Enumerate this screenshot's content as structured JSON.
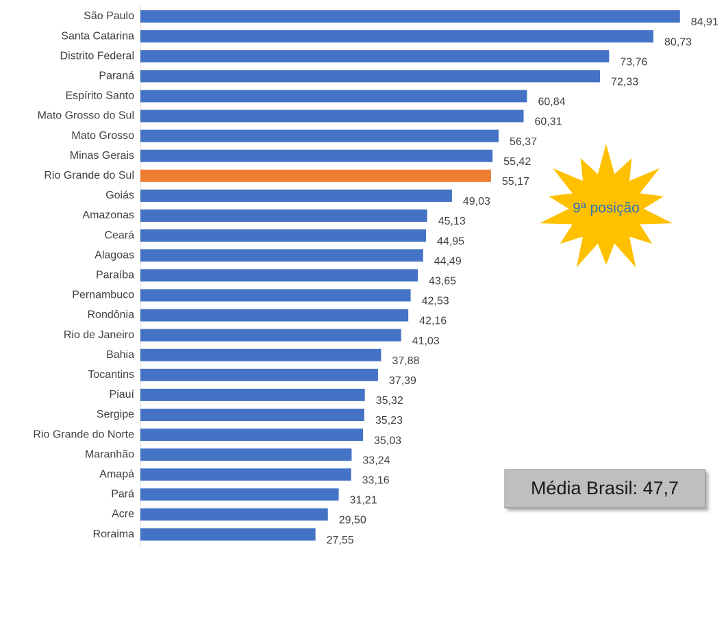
{
  "chart_data": {
    "type": "bar",
    "orientation": "horizontal",
    "categories": [
      "São Paulo",
      "Santa Catarina",
      "Distrito Federal",
      "Paraná",
      "Espírito Santo",
      "Mato Grosso do Sul",
      "Mato Grosso",
      "Minas Gerais",
      "Rio Grande do Sul",
      "Goiás",
      "Amazonas",
      "Ceará",
      "Alagoas",
      "Paraíba",
      "Pernambuco",
      "Rondônia",
      "Rio de Janeiro",
      "Bahia",
      "Tocantins",
      "Piauí",
      "Sergipe",
      "Rio Grande do Norte",
      "Maranhão",
      "Amapá",
      "Pará",
      "Acre",
      "Roraima"
    ],
    "values": [
      84.91,
      80.73,
      73.76,
      72.33,
      60.84,
      60.31,
      56.37,
      55.42,
      55.17,
      49.03,
      45.13,
      44.95,
      44.49,
      43.65,
      42.53,
      42.16,
      41.03,
      37.88,
      37.39,
      35.32,
      35.23,
      35.03,
      33.24,
      33.16,
      31.21,
      29.5,
      27.55
    ],
    "value_labels": [
      "84,91",
      "80,73",
      "73,76",
      "72,33",
      "60,84",
      "60,31",
      "56,37",
      "55,42",
      "55,17",
      "49,03",
      "45,13",
      "44,95",
      "44,49",
      "43,65",
      "42,53",
      "42,16",
      "41,03",
      "37,88",
      "37,39",
      "35,32",
      "35,23",
      "35,03",
      "33,24",
      "33,16",
      "31,21",
      "29,50",
      "27,55"
    ],
    "colors": [
      "#4472c4",
      "#4472c4",
      "#4472c4",
      "#4472c4",
      "#4472c4",
      "#4472c4",
      "#4472c4",
      "#4472c4",
      "#ed7d31",
      "#4472c4",
      "#4472c4",
      "#4472c4",
      "#4472c4",
      "#4472c4",
      "#4472c4",
      "#4472c4",
      "#4472c4",
      "#4472c4",
      "#4472c4",
      "#4472c4",
      "#4472c4",
      "#4472c4",
      "#4472c4",
      "#4472c4",
      "#4472c4",
      "#4472c4",
      "#4472c4"
    ],
    "xlim": [
      0,
      90
    ],
    "annotations": [
      "9ª posição",
      "Média Brasil: 47,7"
    ]
  }
}
